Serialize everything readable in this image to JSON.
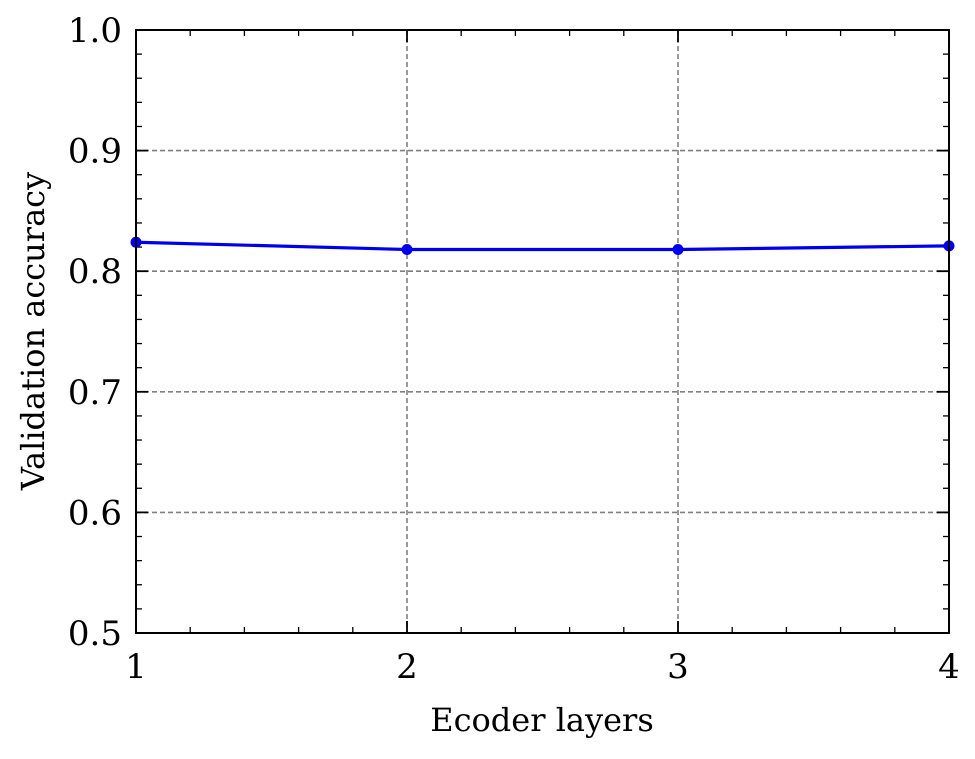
{
  "chart_data": {
    "type": "line",
    "title": "",
    "xlabel": "Ecoder layers",
    "ylabel": "Validation accuracy",
    "x": [
      1,
      2,
      3,
      4
    ],
    "series": [
      {
        "values": [
          0.824,
          0.818,
          0.818,
          0.821
        ]
      }
    ],
    "xlim": [
      1,
      4
    ],
    "ylim": [
      0.5,
      1.0
    ],
    "x_ticks": [
      1,
      2,
      3,
      4
    ],
    "x_tick_labels": [
      "1",
      "2",
      "3",
      "4"
    ],
    "y_ticks": [
      0.5,
      0.6,
      0.7,
      0.8,
      0.9,
      1.0
    ],
    "y_tick_labels": [
      "0.5",
      "0.6",
      "0.7",
      "0.8",
      "0.9",
      "1.0"
    ],
    "grid": true,
    "legend": "none",
    "colors": {
      "line": "#0000ee",
      "grid": "#808080",
      "axes": "#000000"
    }
  }
}
